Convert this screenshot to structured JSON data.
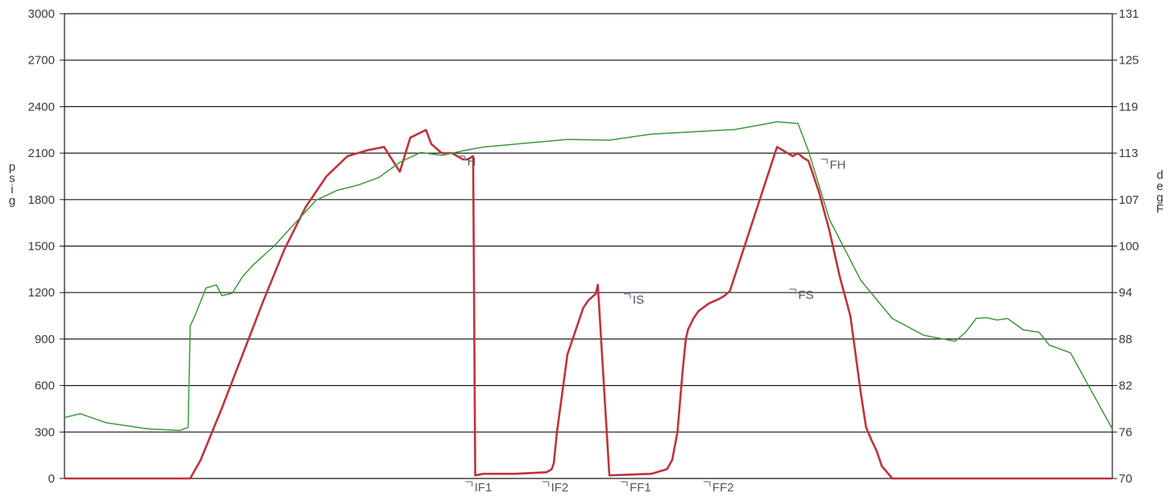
{
  "colors": {
    "pressure": "#c0333c",
    "temperature": "#3a9a3a",
    "grid": "#1a1a1a",
    "event_marker": "#8a8ab8"
  },
  "chart_data": {
    "type": "line",
    "title": "",
    "xlabel": "",
    "ylabel": "psig",
    "y2label": "degF",
    "ylim": [
      0,
      3000
    ],
    "y2lim": [
      70,
      131
    ],
    "xlim": [
      0,
      1000
    ],
    "grid": true,
    "y_ticks": [
      "0",
      "300",
      "600",
      "900",
      "1200",
      "1500",
      "1800",
      "2100",
      "2400",
      "2700",
      "3000"
    ],
    "y2_ticks": [
      "70",
      "76",
      "82",
      "88",
      "94",
      "100",
      "107",
      "113",
      "119",
      "125",
      "131"
    ],
    "series": [
      {
        "axis": "left",
        "color_key": "pressure",
        "x": [
          0,
          120,
          130,
          150,
          170,
          190,
          210,
          230,
          250,
          270,
          290,
          305,
          320,
          330,
          345,
          350,
          360,
          370,
          375,
          380,
          385,
          390,
          392,
          400,
          430,
          460,
          465,
          467,
          470,
          480,
          490,
          495,
          500,
          505,
          507,
          509,
          520,
          560,
          575,
          580,
          585,
          590,
          593,
          595,
          600,
          605,
          615,
          625,
          630,
          635,
          680,
          695,
          700,
          705,
          710,
          720,
          730,
          740,
          750,
          755,
          760,
          765,
          770,
          775,
          780,
          790,
          800,
          820,
          840,
          860,
          870,
          880,
          890,
          900,
          910,
          920,
          930,
          970,
          1000
        ],
        "y": [
          0,
          0,
          120,
          450,
          800,
          1150,
          1480,
          1750,
          1950,
          2080,
          2120,
          2140,
          1980,
          2200,
          2250,
          2160,
          2100,
          2100,
          2080,
          2060,
          2060,
          2080,
          20,
          30,
          30,
          40,
          60,
          100,
          300,
          800,
          1000,
          1100,
          1150,
          1180,
          1190,
          1250,
          20,
          30,
          60,
          120,
          300,
          700,
          900,
          960,
          1030,
          1080,
          1130,
          1160,
          1180,
          1210,
          2140,
          2080,
          2100,
          2070,
          2050,
          1850,
          1600,
          1300,
          1050,
          800,
          550,
          330,
          250,
          180,
          80,
          0,
          0,
          0,
          0,
          0,
          0,
          0,
          0,
          0,
          0,
          0,
          0,
          0,
          0
        ]
      },
      {
        "axis": "right",
        "color_key": "temperature",
        "x": [
          0,
          15,
          40,
          80,
          110,
          118,
          120,
          125,
          135,
          145,
          150,
          160,
          170,
          180,
          200,
          220,
          240,
          260,
          280,
          300,
          320,
          340,
          360,
          380,
          400,
          440,
          480,
          520,
          560,
          600,
          640,
          680,
          700,
          710,
          720,
          730,
          760,
          790,
          820,
          850,
          860,
          870,
          880,
          890,
          900,
          915,
          930,
          940,
          960,
          1000
        ],
        "y": [
          78.0,
          78.5,
          77.3,
          76.5,
          76.3,
          76.7,
          90.0,
          91.5,
          95.0,
          95.4,
          94.0,
          94.3,
          96.5,
          98.0,
          100.5,
          103.5,
          106.5,
          107.8,
          108.5,
          109.5,
          111.5,
          112.8,
          112.4,
          113.0,
          113.5,
          114.0,
          114.5,
          114.4,
          115.2,
          115.5,
          115.8,
          116.8,
          116.6,
          113.0,
          108.5,
          104.0,
          96.0,
          91.0,
          88.8,
          88.0,
          89.2,
          91.0,
          91.1,
          90.8,
          91.0,
          89.5,
          89.2,
          87.5,
          86.5,
          76.5
        ]
      }
    ],
    "event_labels": [
      {
        "text": "H",
        "x": 382,
        "y_left": 2040
      },
      {
        "text": "IF1",
        "x": 389,
        "y_left": -20
      },
      {
        "text": "IF2",
        "x": 462,
        "y_left": -20
      },
      {
        "text": "IS",
        "x": 540,
        "y_left": 1150
      },
      {
        "text": "FF1",
        "x": 537,
        "y_left": -20
      },
      {
        "text": "FF2",
        "x": 616,
        "y_left": -20
      },
      {
        "text": "FS",
        "x": 698,
        "y_left": 1180
      },
      {
        "text": "FH",
        "x": 728,
        "y_left": 2020
      }
    ]
  }
}
